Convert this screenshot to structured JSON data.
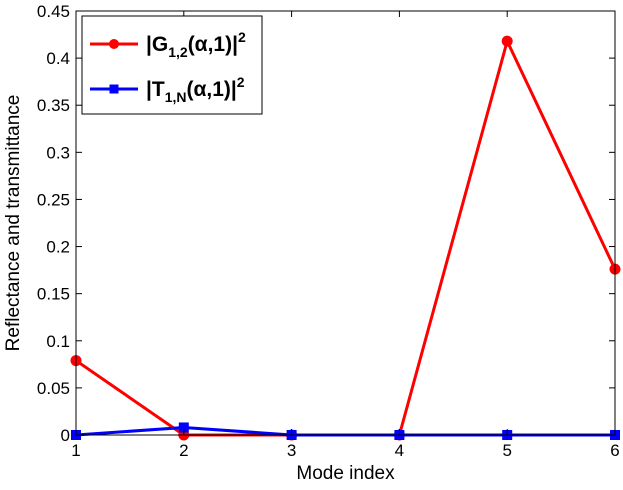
{
  "chart_data": {
    "type": "line",
    "xlabel": "Mode index",
    "ylabel": "Reflectance and transmittance",
    "x": [
      1,
      2,
      3,
      4,
      5,
      6
    ],
    "xlim": [
      1,
      6
    ],
    "ylim": [
      0,
      0.45
    ],
    "x_ticks": [
      "1",
      "2",
      "3",
      "4",
      "5",
      "6"
    ],
    "y_ticks": [
      "0",
      "0.05",
      "0.1",
      "0.15",
      "0.2",
      "0.25",
      "0.3",
      "0.35",
      "0.4",
      "0.45"
    ],
    "grid": false,
    "legend_placement": "top-left",
    "series": [
      {
        "name": "|G1,2(α,1)|2",
        "legend": {
          "main": "|G",
          "sub": "1,2",
          "mid": "(α,1)|",
          "sup": "2"
        },
        "values": [
          0.079,
          0.0,
          0.0,
          0.0,
          0.418,
          0.176
        ],
        "color": "#ff0000",
        "marker": "circle"
      },
      {
        "name": "|T1,N(α,1)|2",
        "legend": {
          "main": "|T",
          "sub": "1,N",
          "mid": "(α,1)|",
          "sup": "2"
        },
        "values": [
          0.0,
          0.008,
          0.0,
          0.0,
          0.0,
          0.0
        ],
        "color": "#0000ff",
        "marker": "square"
      }
    ]
  }
}
